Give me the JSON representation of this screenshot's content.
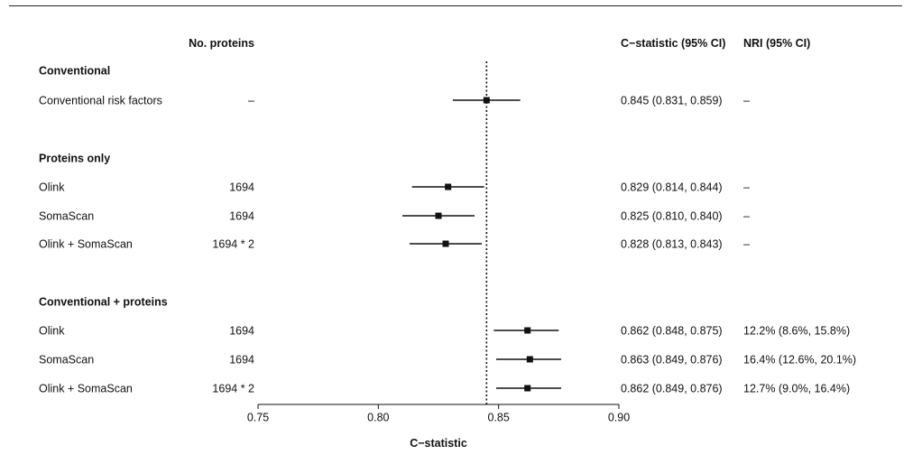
{
  "chart_data": {
    "type": "forest",
    "columns": {
      "proteins": "No. proteins",
      "cstat": "C−statistic (95% CI)",
      "nri": "NRI (95% CI)"
    },
    "xlabel": "C−statistic",
    "xlim": [
      0.75,
      0.9
    ],
    "xticks": [
      "0.75",
      "0.80",
      "0.85",
      "0.90"
    ],
    "reference_line": 0.845,
    "rows": [
      {
        "type": "header",
        "label": "Conventional"
      },
      {
        "type": "data",
        "label": "Conventional risk factors",
        "proteins": "–",
        "est": 0.845,
        "lo": 0.831,
        "hi": 0.859,
        "cstat": "0.845 (0.831, 0.859)",
        "nri": "–"
      },
      {
        "type": "header",
        "label": "Proteins only"
      },
      {
        "type": "data",
        "label": "Olink",
        "proteins": "1694",
        "est": 0.829,
        "lo": 0.814,
        "hi": 0.844,
        "cstat": "0.829 (0.814, 0.844)",
        "nri": "–"
      },
      {
        "type": "data",
        "label": "SomaScan",
        "proteins": "1694",
        "est": 0.825,
        "lo": 0.81,
        "hi": 0.84,
        "cstat": "0.825 (0.810, 0.840)",
        "nri": "–"
      },
      {
        "type": "data",
        "label": "Olink + SomaScan",
        "proteins": "1694 * 2",
        "est": 0.828,
        "lo": 0.813,
        "hi": 0.843,
        "cstat": "0.828 (0.813, 0.843)",
        "nri": "–"
      },
      {
        "type": "header",
        "label": "Conventional + proteins"
      },
      {
        "type": "data",
        "label": "Olink",
        "proteins": "1694",
        "est": 0.862,
        "lo": 0.848,
        "hi": 0.875,
        "cstat": "0.862 (0.848, 0.875)",
        "nri": "12.2% (8.6%, 15.8%)"
      },
      {
        "type": "data",
        "label": "SomaScan",
        "proteins": "1694",
        "est": 0.863,
        "lo": 0.849,
        "hi": 0.876,
        "cstat": "0.863 (0.849, 0.876)",
        "nri": "16.4% (12.6%, 20.1%)"
      },
      {
        "type": "data",
        "label": "Olink + SomaScan",
        "proteins": "1694 * 2",
        "est": 0.862,
        "lo": 0.849,
        "hi": 0.876,
        "cstat": "0.862 (0.849, 0.876)",
        "nri": "12.7% (9.0%, 16.4%)"
      }
    ]
  }
}
